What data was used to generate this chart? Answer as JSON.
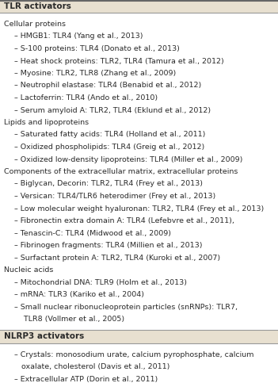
{
  "bg_color": "#ffffff",
  "content_bg": "#ffffff",
  "header_bg": "#e8e0d0",
  "text_color": "#2a2a2a",
  "divider_color": "#aaaaaa",
  "header1_text": "TLR activators",
  "header2_text": "NLRP3 activators",
  "tlr_lines": [
    {
      "text": "Cellular proteins",
      "indent": 0
    },
    {
      "text": "– HMGB1: TLR4 (Yang et al., 2013)",
      "indent": 1
    },
    {
      "text": "– S-100 proteins: TLR4 (Donato et al., 2013)",
      "indent": 1
    },
    {
      "text": "– Heat shock proteins: TLR2, TLR4 (Tamura et al., 2012)",
      "indent": 1
    },
    {
      "text": "– Myosine: TLR2, TLR8 (Zhang et al., 2009)",
      "indent": 1
    },
    {
      "text": "– Neutrophil elastase: TLR4 (Benabid et al., 2012)",
      "indent": 1
    },
    {
      "text": "– Lactoferrin: TLR4 (Ando et al., 2010)",
      "indent": 1
    },
    {
      "text": "– Serum amyloid A: TLR2, TLR4 (Eklund et al., 2012)",
      "indent": 1
    },
    {
      "text": "Lipids and lipoproteins",
      "indent": 0
    },
    {
      "text": "– Saturated fatty acids: TLR4 (Holland et al., 2011)",
      "indent": 1
    },
    {
      "text": "– Oxidized phospholipids: TLR4 (Greig et al., 2012)",
      "indent": 1
    },
    {
      "text": "– Oxidized low-density lipoproteins: TLR4 (Miller et al., 2009)",
      "indent": 1
    },
    {
      "text": "Components of the extracellular matrix, extracellular proteins",
      "indent": 0
    },
    {
      "text": "– Biglycan, Decorin: TLR2, TLR4 (Frey et al., 2013)",
      "indent": 1
    },
    {
      "text": "– Versican: TLR4/TLR6 heterodimer (Frey et al., 2013)",
      "indent": 1
    },
    {
      "text": "– Low molecular weight hyaluronan: TLR2, TLR4 (Frey et al., 2013)",
      "indent": 1
    },
    {
      "text": "– Fibronectin extra domain A: TLR4 (Lefebvre et al., 2011),",
      "indent": 1
    },
    {
      "text": "– Tenascin-C: TLR4 (Midwood et al., 2009)",
      "indent": 1
    },
    {
      "text": "– Fibrinogen fragments: TLR4 (Millien et al., 2013)",
      "indent": 1
    },
    {
      "text": "– Surfactant protein A: TLR2, TLR4 (Kuroki et al., 2007)",
      "indent": 1
    },
    {
      "text": "Nucleic acids",
      "indent": 0
    },
    {
      "text": "– Mitochondrial DNA: TLR9 (Holm et al., 2013)",
      "indent": 1
    },
    {
      "text": "– mRNA: TLR3 (Kariko et al., 2004)",
      "indent": 1
    },
    {
      "text": "– Small nuclear ribonucleoprotein particles (snRNPs): TLR7,",
      "indent": 1
    },
    {
      "text": "    TLR8 (Vollmer et al., 2005)",
      "indent": 1
    }
  ],
  "nlrp3_lines": [
    {
      "text": "– Crystals: monosodium urate, calcium pyrophosphate, calcium",
      "indent": 1
    },
    {
      "text": "   oxalate, cholesterol (Davis et al., 2011)",
      "indent": 1
    },
    {
      "text": "– Extracellular ATP (Dorin et al., 2011)",
      "indent": 1
    }
  ],
  "font_size": 6.8,
  "header_font_size": 7.5,
  "fig_width": 3.51,
  "fig_height": 4.83,
  "dpi": 100
}
